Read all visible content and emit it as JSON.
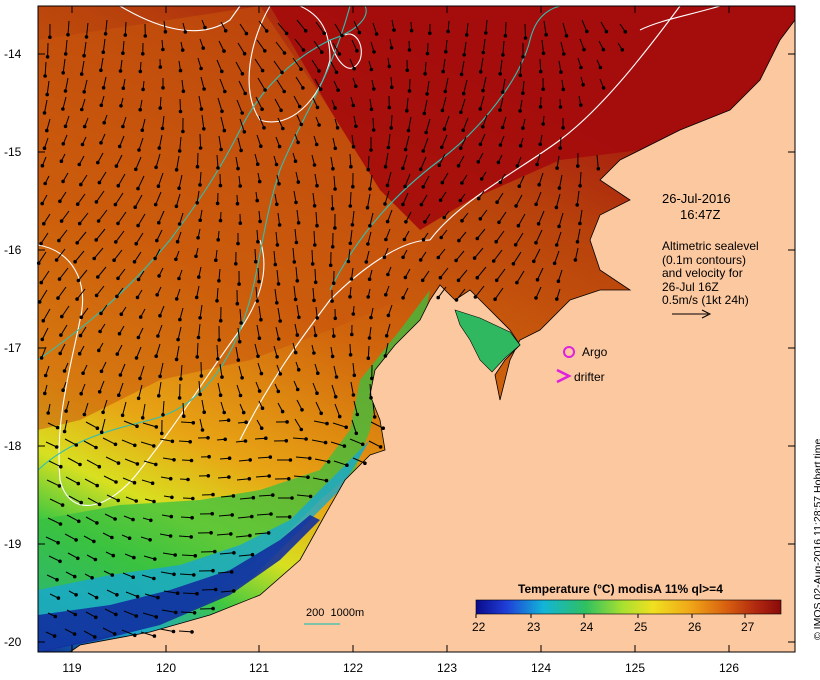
{
  "map": {
    "x_ticks": [
      "119",
      "120",
      "121",
      "122",
      "123",
      "124",
      "125",
      "126"
    ],
    "y_ticks": [
      "-14",
      "-15",
      "-16",
      "-17",
      "-18",
      "-19",
      "-20"
    ],
    "obs_date": "26-Jul-2016",
    "obs_time": "16:47Z",
    "altimetry_lines": [
      "Altimetric sealevel",
      "(0.1m contours)",
      "and velocity for",
      "26-Jul 16Z",
      "0.5m/s (1kt 24h)"
    ],
    "argo_label": "Argo",
    "drifter_label": "drifter",
    "depth_label_a": "200",
    "depth_label_b": "1000m",
    "colorbar_title": "Temperature (°C) modisA 11% ql>=4",
    "colorbar_ticks": [
      "22",
      "23",
      "24",
      "25",
      "26",
      "27"
    ],
    "credit": "© IMOS 02-Aug-2016 11:28:57 Hobart time",
    "colors": {
      "land": "#fcc8a0",
      "sst_hot": "#a50c0c",
      "sst_warm": "#cc5a0a",
      "sst_mid": "#e89a12",
      "sst_yellow": "#e0e020",
      "sst_green": "#38c838",
      "sst_cyan": "#18b8c8",
      "sst_blue": "#1030a0",
      "argo_marker": "#e020e0",
      "contour": "#ffffff",
      "isobath": "#30c0b0"
    }
  }
}
